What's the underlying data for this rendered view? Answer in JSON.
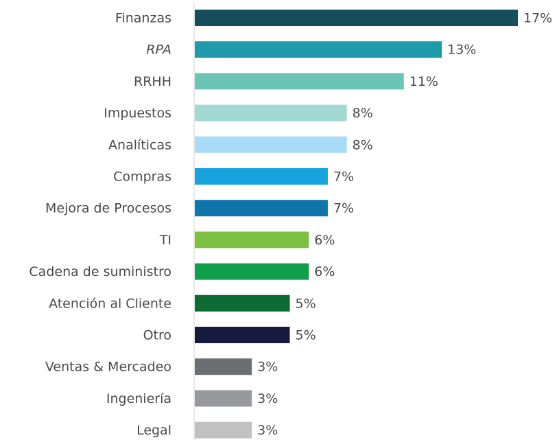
{
  "chart_data": {
    "type": "barh",
    "categories": [
      "Finanzas",
      "RPA",
      "RRHH",
      "Impuestos",
      "Analíticas",
      "Compras",
      "Mejora de Procesos",
      "TI",
      "Cadena de suministro",
      "Atención al Cliente",
      "Otro",
      "Ventas & Mercadeo",
      "Ingeniería",
      "Legal"
    ],
    "values": [
      17,
      13,
      11,
      8,
      8,
      7,
      7,
      6,
      6,
      5,
      5,
      3,
      3,
      3
    ],
    "value_labels": [
      "17%",
      "13%",
      "11%",
      "8%",
      "8%",
      "7%",
      "7%",
      "6%",
      "6%",
      "5%",
      "5%",
      "3%",
      "3%",
      "3%"
    ],
    "colors": [
      "#164f5b",
      "#1e9aab",
      "#6cc5b4",
      "#a0d8d2",
      "#a8dcf6",
      "#17a4de",
      "#0f76ab",
      "#7cc142",
      "#119e4a",
      "#0e6a35",
      "#161a3d",
      "#6b6e73",
      "#97999c",
      "#c1c1c1"
    ],
    "xlim": [
      0,
      17
    ]
  }
}
